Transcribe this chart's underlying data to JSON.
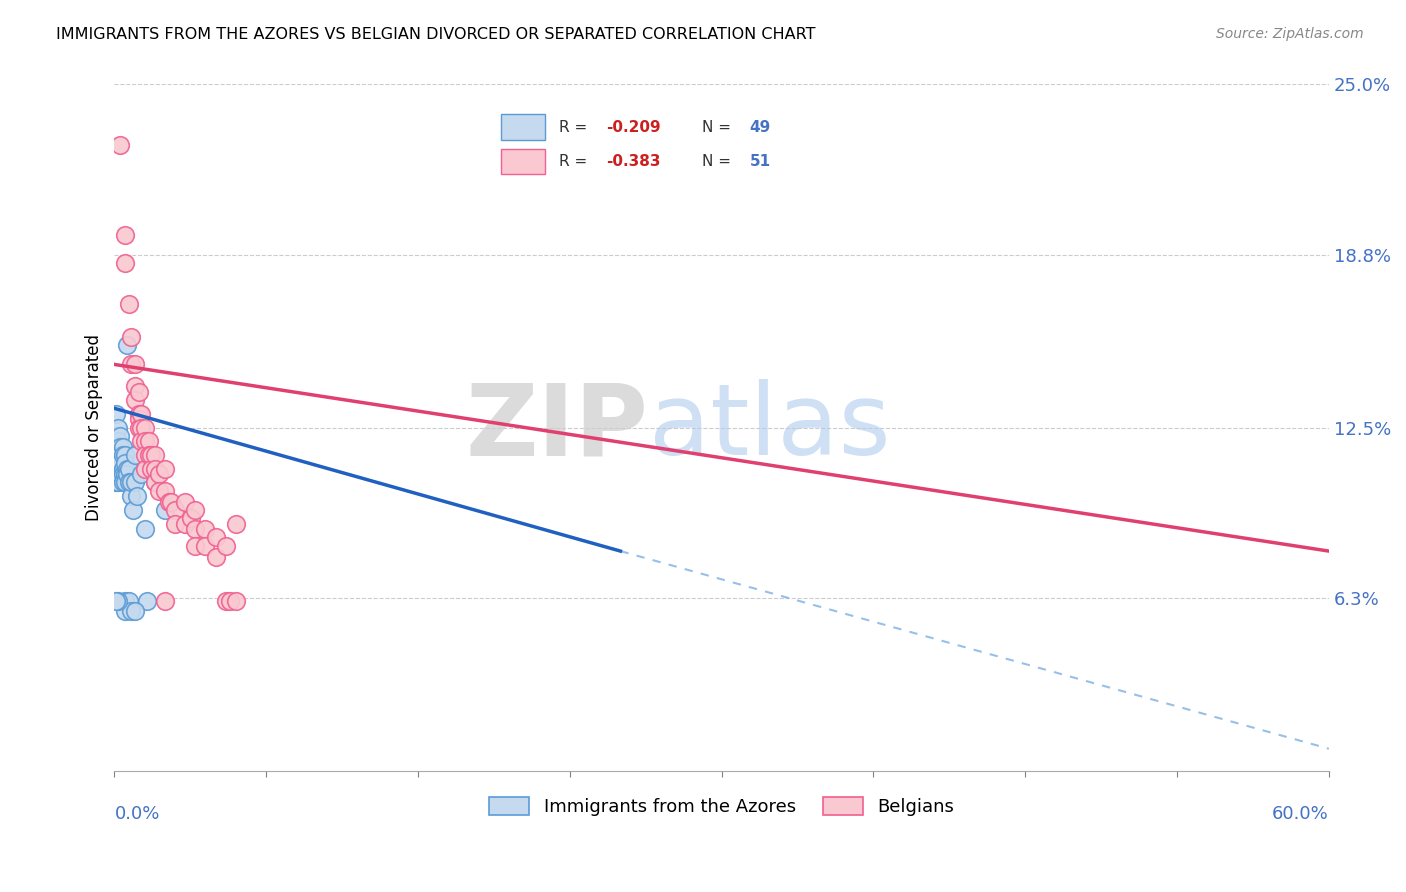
{
  "title": "IMMIGRANTS FROM THE AZORES VS BELGIAN DIVORCED OR SEPARATED CORRELATION CHART",
  "source": "Source: ZipAtlas.com",
  "ylabel": "Divorced or Separated",
  "xlim": [
    0.0,
    0.6
  ],
  "ylim": [
    0.0,
    0.25
  ],
  "legend_r1": "-0.209",
  "legend_n1": "49",
  "legend_r2": "-0.383",
  "legend_n2": "51",
  "legend_label1": "Immigrants from the Azores",
  "legend_label2": "Belgians",
  "color_blue_fill": "#C5DAEF",
  "color_pink_fill": "#F9C8D0",
  "color_blue_edge": "#5B9BD5",
  "color_pink_edge": "#F06090",
  "color_blue_line": "#2060C0",
  "color_pink_line": "#E04070",
  "color_dashed": "#7EB0E0",
  "watermark_zip": "ZIP",
  "watermark_atlas": "atlas",
  "blue_points": [
    [
      0.001,
      0.13
    ],
    [
      0.001,
      0.122
    ],
    [
      0.001,
      0.118
    ],
    [
      0.001,
      0.112
    ],
    [
      0.001,
      0.108
    ],
    [
      0.001,
      0.105
    ],
    [
      0.002,
      0.125
    ],
    [
      0.002,
      0.12
    ],
    [
      0.002,
      0.115
    ],
    [
      0.002,
      0.112
    ],
    [
      0.002,
      0.108
    ],
    [
      0.002,
      0.105
    ],
    [
      0.003,
      0.122
    ],
    [
      0.003,
      0.118
    ],
    [
      0.003,
      0.115
    ],
    [
      0.003,
      0.112
    ],
    [
      0.003,
      0.108
    ],
    [
      0.004,
      0.118
    ],
    [
      0.004,
      0.115
    ],
    [
      0.004,
      0.11
    ],
    [
      0.004,
      0.108
    ],
    [
      0.004,
      0.105
    ],
    [
      0.005,
      0.115
    ],
    [
      0.005,
      0.112
    ],
    [
      0.005,
      0.108
    ],
    [
      0.005,
      0.105
    ],
    [
      0.006,
      0.11
    ],
    [
      0.006,
      0.108
    ],
    [
      0.006,
      0.155
    ],
    [
      0.007,
      0.11
    ],
    [
      0.007,
      0.105
    ],
    [
      0.008,
      0.1
    ],
    [
      0.008,
      0.105
    ],
    [
      0.009,
      0.095
    ],
    [
      0.01,
      0.115
    ],
    [
      0.01,
      0.105
    ],
    [
      0.011,
      0.1
    ],
    [
      0.013,
      0.108
    ],
    [
      0.015,
      0.088
    ],
    [
      0.016,
      0.062
    ],
    [
      0.02,
      0.105
    ],
    [
      0.025,
      0.095
    ],
    [
      0.005,
      0.062
    ],
    [
      0.005,
      0.058
    ],
    [
      0.007,
      0.062
    ],
    [
      0.008,
      0.058
    ],
    [
      0.01,
      0.058
    ],
    [
      0.002,
      0.062
    ],
    [
      0.001,
      0.062
    ]
  ],
  "pink_points": [
    [
      0.003,
      0.228
    ],
    [
      0.005,
      0.195
    ],
    [
      0.005,
      0.185
    ],
    [
      0.007,
      0.17
    ],
    [
      0.008,
      0.158
    ],
    [
      0.008,
      0.148
    ],
    [
      0.01,
      0.148
    ],
    [
      0.01,
      0.14
    ],
    [
      0.01,
      0.135
    ],
    [
      0.012,
      0.138
    ],
    [
      0.012,
      0.13
    ],
    [
      0.012,
      0.128
    ],
    [
      0.012,
      0.125
    ],
    [
      0.013,
      0.13
    ],
    [
      0.013,
      0.125
    ],
    [
      0.013,
      0.12
    ],
    [
      0.015,
      0.125
    ],
    [
      0.015,
      0.12
    ],
    [
      0.015,
      0.115
    ],
    [
      0.015,
      0.11
    ],
    [
      0.017,
      0.12
    ],
    [
      0.017,
      0.115
    ],
    [
      0.018,
      0.115
    ],
    [
      0.018,
      0.11
    ],
    [
      0.02,
      0.115
    ],
    [
      0.02,
      0.11
    ],
    [
      0.02,
      0.105
    ],
    [
      0.022,
      0.108
    ],
    [
      0.022,
      0.102
    ],
    [
      0.025,
      0.11
    ],
    [
      0.025,
      0.102
    ],
    [
      0.027,
      0.098
    ],
    [
      0.028,
      0.098
    ],
    [
      0.03,
      0.095
    ],
    [
      0.03,
      0.09
    ],
    [
      0.035,
      0.098
    ],
    [
      0.035,
      0.09
    ],
    [
      0.038,
      0.092
    ],
    [
      0.04,
      0.095
    ],
    [
      0.04,
      0.088
    ],
    [
      0.04,
      0.082
    ],
    [
      0.045,
      0.088
    ],
    [
      0.045,
      0.082
    ],
    [
      0.05,
      0.085
    ],
    [
      0.05,
      0.078
    ],
    [
      0.055,
      0.082
    ],
    [
      0.055,
      0.062
    ],
    [
      0.057,
      0.062
    ],
    [
      0.06,
      0.09
    ],
    [
      0.06,
      0.062
    ],
    [
      0.025,
      0.062
    ]
  ],
  "blue_line_x": [
    0.0,
    0.25
  ],
  "blue_line_y": [
    0.132,
    0.08
  ],
  "pink_line_x": [
    0.0,
    0.6
  ],
  "pink_line_y": [
    0.148,
    0.08
  ],
  "dashed_line_x": [
    0.25,
    0.6
  ],
  "dashed_line_y": [
    0.08,
    0.008
  ]
}
